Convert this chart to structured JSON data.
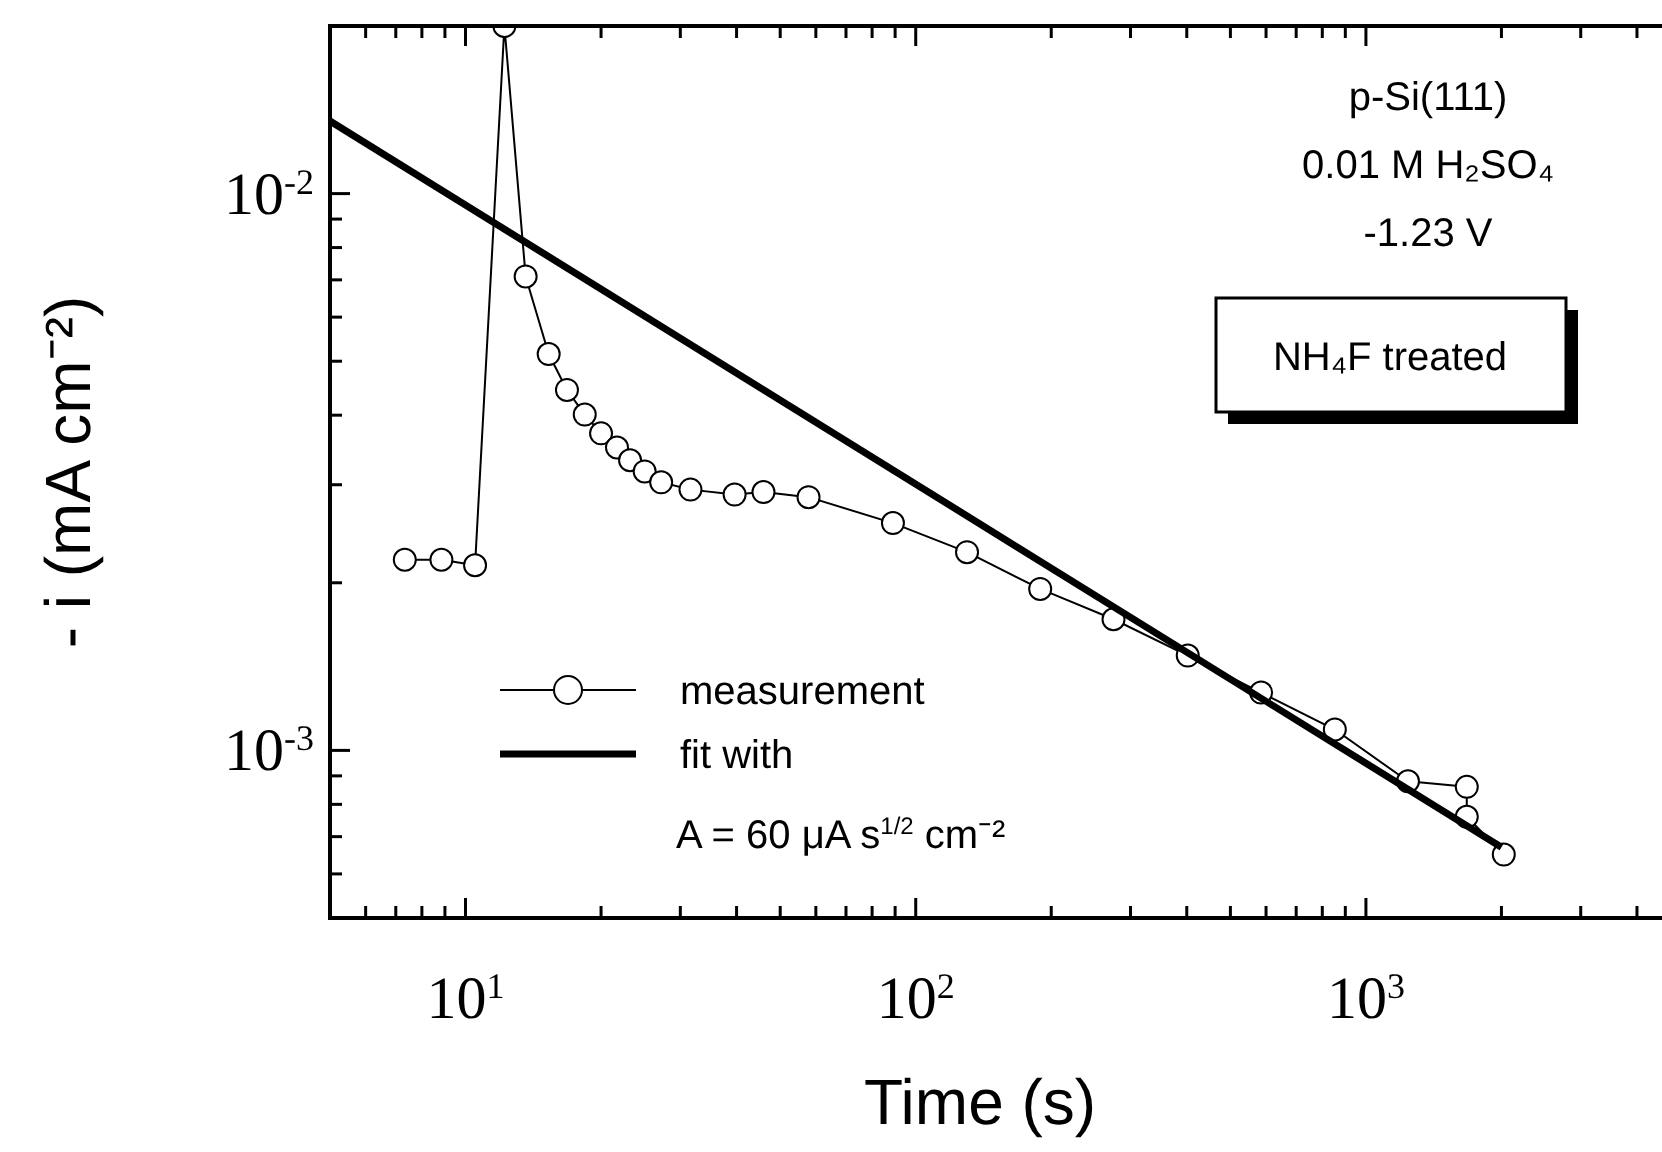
{
  "chart_data": {
    "type": "line",
    "xlabel": "Time (s)",
    "ylabel": "- i (mA cm⁻²)",
    "log": "xy",
    "legend": "bottom left",
    "xlim": [
      5,
      4500
    ],
    "ylim": [
      0.0005,
      0.02
    ],
    "xticks": [
      {
        "value": 6,
        "label": null
      },
      {
        "value": 7,
        "label": null
      },
      {
        "value": 8,
        "label": null
      },
      {
        "value": 9,
        "label": null
      },
      {
        "value": 10,
        "label": "10$^{1}$"
      },
      {
        "value": 20,
        "label": null
      },
      {
        "value": 30,
        "label": null
      },
      {
        "value": 40,
        "label": null
      },
      {
        "value": 50,
        "label": null
      },
      {
        "value": 60,
        "label": null
      },
      {
        "value": 70,
        "label": null
      },
      {
        "value": 80,
        "label": null
      },
      {
        "value": 90,
        "label": null
      },
      {
        "value": 100,
        "label": "10$^{2}$"
      },
      {
        "value": 200,
        "label": null
      },
      {
        "value": 300,
        "label": null
      },
      {
        "value": 400,
        "label": null
      },
      {
        "value": 500,
        "label": null
      },
      {
        "value": 600,
        "label": null
      },
      {
        "value": 700,
        "label": null
      },
      {
        "value": 800,
        "label": null
      },
      {
        "value": 900,
        "label": null
      },
      {
        "value": 1000,
        "label": "10$^{3}$"
      },
      {
        "value": 2000,
        "label": null
      },
      {
        "value": 3000,
        "label": null
      },
      {
        "value": 4000,
        "label": null
      }
    ],
    "yticks": [
      {
        "value": 0.0006,
        "label": null
      },
      {
        "value": 0.0007,
        "label": null
      },
      {
        "value": 0.0008,
        "label": null
      },
      {
        "value": 0.0009,
        "label": null
      },
      {
        "value": 0.001,
        "label": "10$^{-3}$"
      },
      {
        "value": 0.002,
        "label": null
      },
      {
        "value": 0.003,
        "label": null
      },
      {
        "value": 0.004,
        "label": null
      },
      {
        "value": 0.005,
        "label": null
      },
      {
        "value": 0.006,
        "label": null
      },
      {
        "value": 0.007,
        "label": null
      },
      {
        "value": 0.008,
        "label": null
      },
      {
        "value": 0.009,
        "label": null
      },
      {
        "value": 0.01,
        "label": "10$^{-2}$"
      }
    ],
    "series": [
      {
        "name": "measurement",
        "marker": "circle",
        "color": "#000000",
        "x": [
          7.33,
          8.84,
          10.5,
          12.2,
          13.6,
          15.3,
          16.8,
          18.4,
          20.0,
          21.7,
          23.2,
          25,
          27.2,
          31.6,
          39.6,
          45.9,
          57.8,
          89,
          130,
          189,
          275,
          402,
          585,
          853,
          1240,
          1675,
          1675,
          2024
        ],
        "values": [
          0.0022,
          0.0022,
          0.00215,
          0.02,
          0.0071,
          0.00515,
          0.00444,
          0.00401,
          0.00371,
          0.0035,
          0.00332,
          0.00317,
          0.00303,
          0.00294,
          0.00288,
          0.00291,
          0.00285,
          0.00256,
          0.00227,
          0.00195,
          0.00172,
          0.00148,
          0.00127,
          0.00109,
          0.00088,
          0.00086,
          0.00076,
          0.00065
        ]
      },
      {
        "name": "fit with",
        "marker": "none",
        "color": "#000000",
        "x": [
          5,
          2000
        ],
        "values": [
          0.0135,
          0.00067
        ]
      }
    ],
    "annotations": [
      "p-Si(111)",
      "0.01 M H₂SO₄",
      "-1.23 V",
      "NH₄F treated",
      "A = 60 μA s$^{1/2}$ cm⁻²"
    ]
  }
}
